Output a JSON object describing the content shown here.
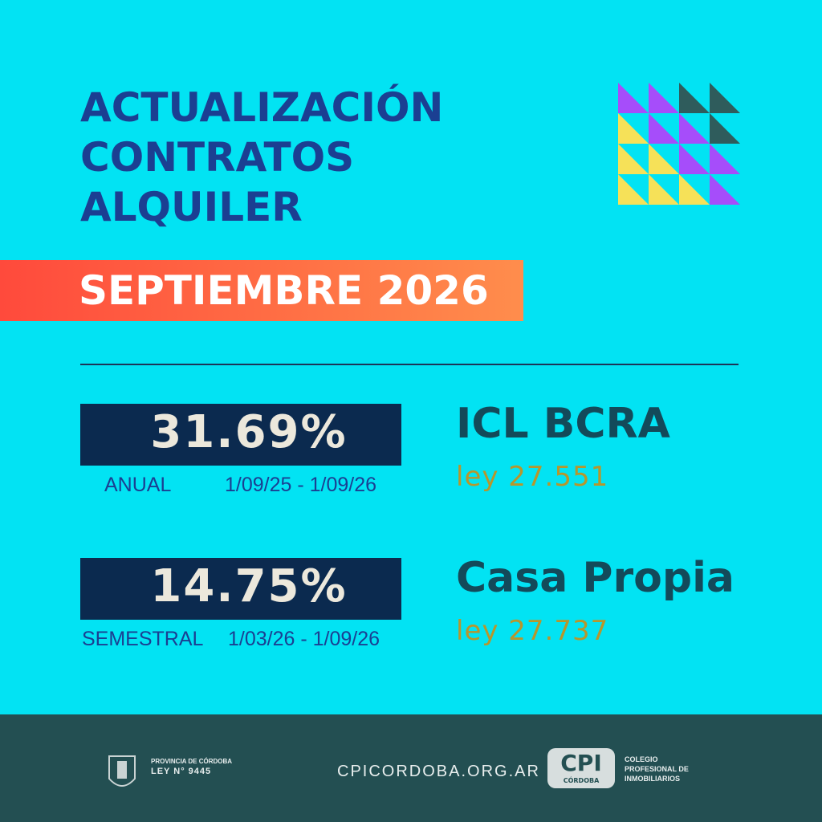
{
  "header": {
    "title": [
      "ACTUALIZACIÓN",
      "CONTRATOS",
      "ALQUILER"
    ],
    "month": "SEPTIEMBRE 2026"
  },
  "indices": [
    {
      "value": "31.69%",
      "period": "ANUAL",
      "dates": "1/09/25 - 1/09/26",
      "name": "ICL  BCRA",
      "law": "ley 27.551"
    },
    {
      "value": "14.75%",
      "period": "SEMESTRAL",
      "dates": "1/03/26 - 1/09/26",
      "name": "Casa Propia",
      "law": "ley 27.737"
    }
  ],
  "footer": {
    "province": "PROVINCIA DE CÓRDOBA",
    "law": "LEY N° 9445",
    "website": "CPICORDOBA.ORG.AR",
    "logo": "CPI",
    "logo_sub": "CÓRDOBA",
    "college": [
      "COLEGIO",
      "PROFESIONAL DE",
      "INMOBILIARIOS"
    ]
  }
}
